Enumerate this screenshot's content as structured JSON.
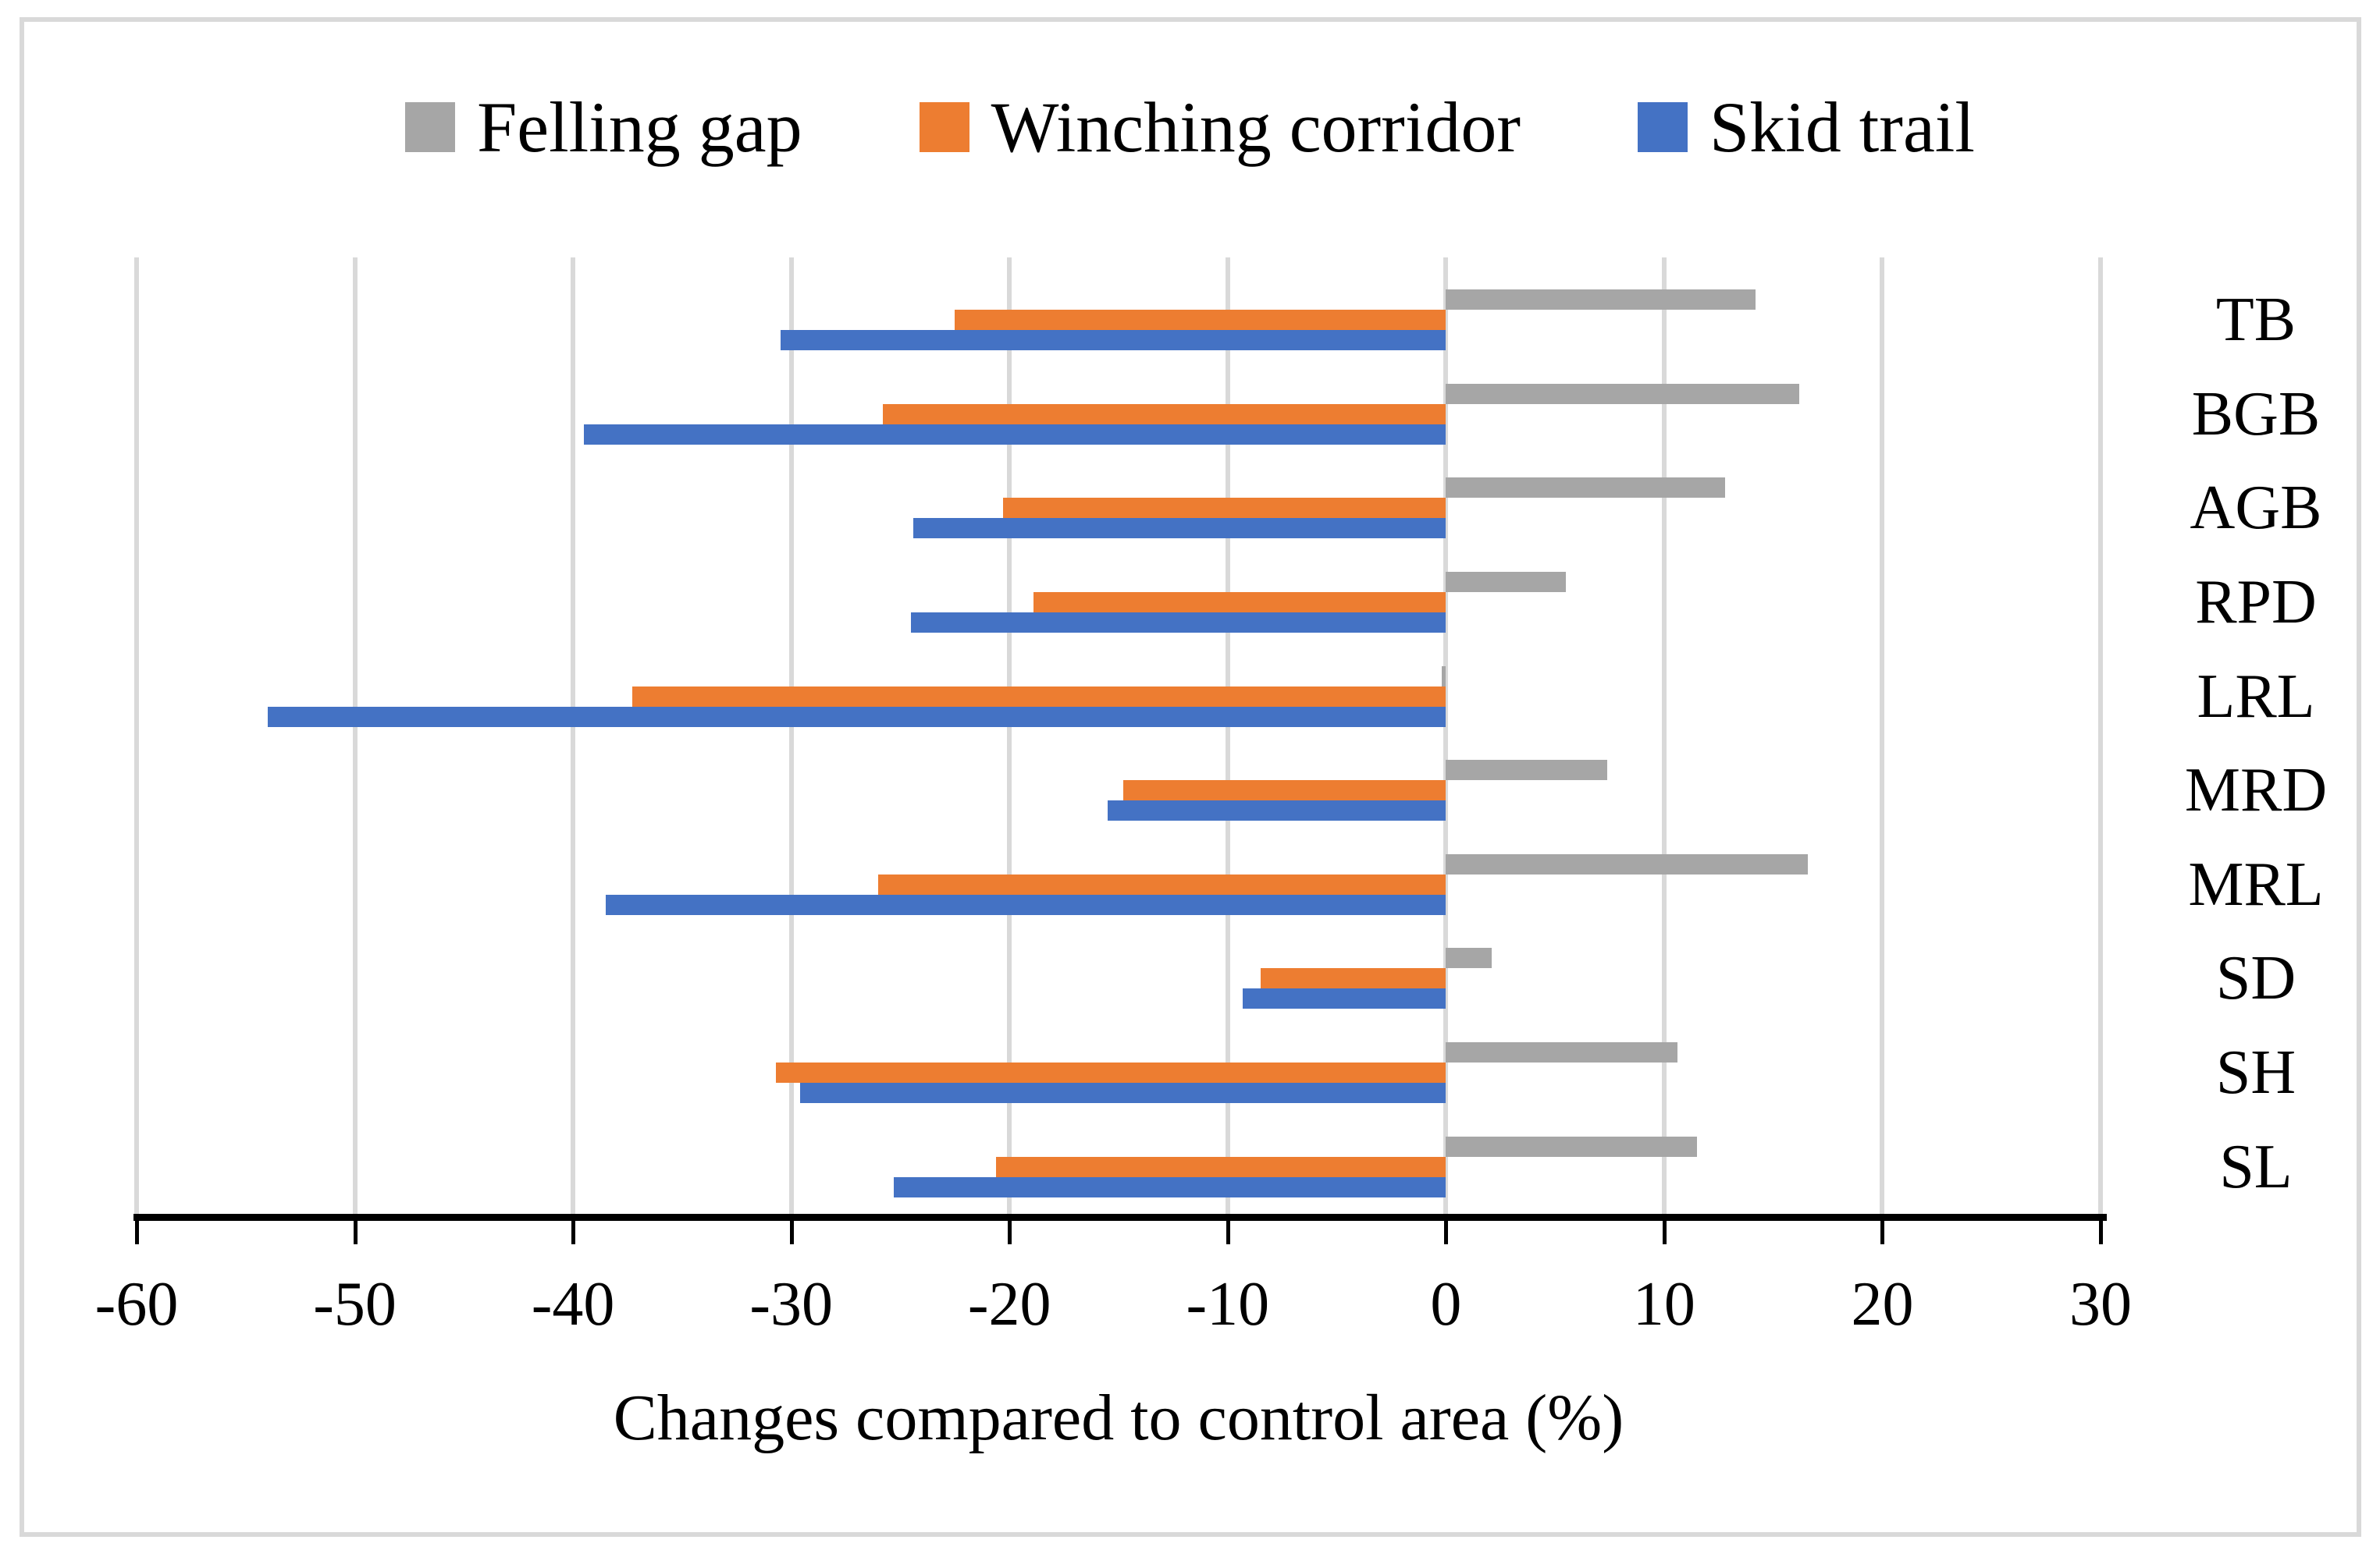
{
  "chart_data": {
    "type": "bar",
    "orientation": "horizontal",
    "title": "",
    "xlabel": "Changes compared to control area (%)",
    "ylabel": "",
    "categories": [
      "TB",
      "BGB",
      "AGB",
      "RPD",
      "LRL",
      "MRD",
      "MRL",
      "SD",
      "SH",
      "SL"
    ],
    "series": [
      {
        "name": "Felling gap",
        "color": "#A6A6A6",
        "values": [
          14.2,
          16.2,
          12.8,
          5.5,
          -0.2,
          7.4,
          16.6,
          2.1,
          10.6,
          11.5
        ]
      },
      {
        "name": "Winching corridor",
        "color": "#ED7D31",
        "values": [
          -22.5,
          -25.8,
          -20.3,
          -18.9,
          -37.3,
          -14.8,
          -26.0,
          -8.5,
          -30.7,
          -20.6
        ]
      },
      {
        "name": "Skid trail",
        "color": "#4472C4",
        "values": [
          -30.5,
          -39.5,
          -24.4,
          -24.5,
          -54.0,
          -15.5,
          -38.5,
          -9.3,
          -29.6,
          -25.3
        ]
      }
    ],
    "xlim": [
      -60,
      30
    ],
    "xticks": [
      -60,
      -50,
      -40,
      -30,
      -20,
      -10,
      0,
      10,
      20,
      30
    ],
    "grid": true,
    "legend_position": "top",
    "colors": {
      "gridline": "#D9D9D9",
      "axis_line": "#000000",
      "frame_border": "#D9D9D9",
      "background": "#FFFFFF",
      "text": "#000000"
    }
  }
}
